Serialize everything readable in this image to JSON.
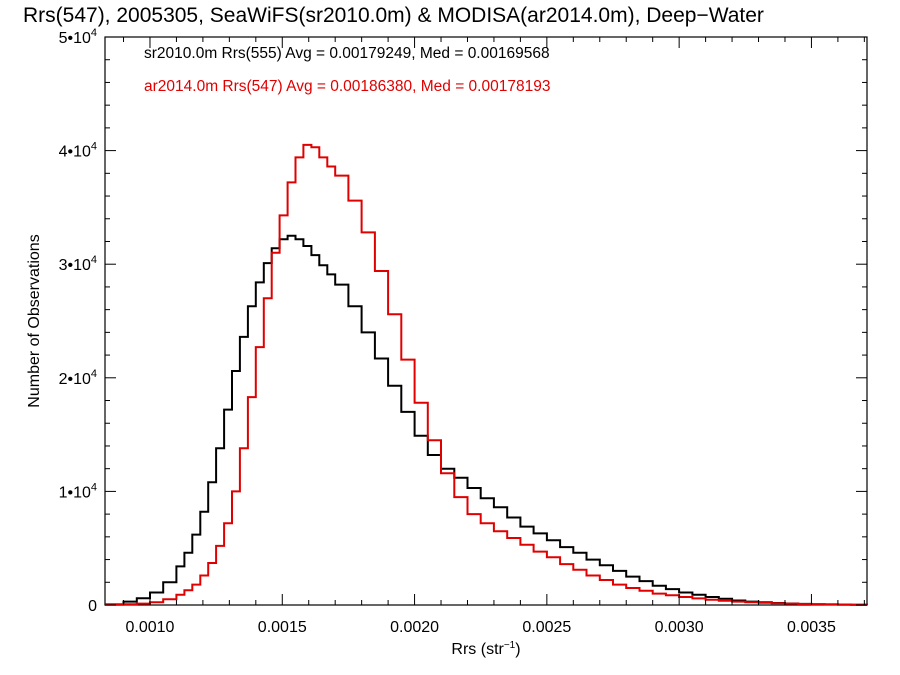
{
  "chart_data": {
    "type": "line",
    "title": "Rrs(547), 2005305, SeaWiFS(sr2010.0m) & MODISA(ar2014.0m), Deep−Water",
    "xlabel": "Rrs (str",
    "xlabel_sup": "−1",
    "xlabel_close": ")",
    "ylabel": "Number of Observations",
    "xlim": [
      0.00083,
      0.00371
    ],
    "ylim": [
      0,
      50000
    ],
    "x_ticks": [
      {
        "value": 0.001,
        "label": "0.0010"
      },
      {
        "value": 0.0015,
        "label": "0.0015"
      },
      {
        "value": 0.002,
        "label": "0.0020"
      },
      {
        "value": 0.0025,
        "label": "0.0025"
      },
      {
        "value": 0.003,
        "label": "0.0030"
      },
      {
        "value": 0.0035,
        "label": "0.0035"
      }
    ],
    "y_ticks": [
      {
        "value": 0,
        "label": "0",
        "sup": ""
      },
      {
        "value": 10000,
        "label": "1•10",
        "sup": "4"
      },
      {
        "value": 20000,
        "label": "2•10",
        "sup": "4"
      },
      {
        "value": 30000,
        "label": "3•10",
        "sup": "4"
      },
      {
        "value": 40000,
        "label": "4•10",
        "sup": "4"
      },
      {
        "value": 50000,
        "label": "5•10",
        "sup": "4"
      }
    ],
    "grid": false,
    "legend_placement": "top-left",
    "series": [
      {
        "legend": "sr2010.0m Rrs(555) Avg = 0.00179249, Med = 0.00169568",
        "color": "#000000",
        "style": "step",
        "x": [
          0.00083,
          0.0009,
          0.00095,
          0.001,
          0.00105,
          0.0011,
          0.00113,
          0.00116,
          0.00119,
          0.00122,
          0.00125,
          0.00128,
          0.00131,
          0.00134,
          0.00137,
          0.0014,
          0.00143,
          0.00146,
          0.00149,
          0.00152,
          0.00155,
          0.00158,
          0.00161,
          0.00164,
          0.00167,
          0.0017,
          0.00175,
          0.0018,
          0.00185,
          0.0019,
          0.00195,
          0.002,
          0.00205,
          0.0021,
          0.00215,
          0.0022,
          0.00225,
          0.0023,
          0.00235,
          0.0024,
          0.00245,
          0.0025,
          0.00255,
          0.0026,
          0.00265,
          0.0027,
          0.00275,
          0.0028,
          0.00285,
          0.0029,
          0.00295,
          0.003,
          0.00305,
          0.0031,
          0.00315,
          0.0032,
          0.00325,
          0.0033,
          0.00335,
          0.0034,
          0.00345,
          0.0035,
          0.00355,
          0.0036,
          0.00365,
          0.00371
        ],
        "y": [
          50,
          300,
          600,
          1100,
          2000,
          3400,
          4600,
          6200,
          8200,
          10800,
          13800,
          17200,
          20600,
          23600,
          26300,
          28400,
          30100,
          31400,
          32200,
          32500,
          32200,
          31600,
          30800,
          29900,
          29100,
          28200,
          26300,
          24000,
          21700,
          19300,
          17000,
          14900,
          13200,
          12000,
          11200,
          10300,
          9400,
          8600,
          7700,
          6900,
          6300,
          5700,
          5100,
          4600,
          4000,
          3500,
          3000,
          2500,
          2100,
          1700,
          1400,
          1100,
          900,
          700,
          550,
          400,
          300,
          250,
          180,
          130,
          100,
          70,
          50,
          35,
          25,
          15
        ]
      },
      {
        "legend": "ar2014.0m Rrs(547) Avg = 0.00186380, Med = 0.00178193",
        "color": "#e00000",
        "style": "step",
        "x": [
          0.00083,
          0.0009,
          0.00095,
          0.001,
          0.00105,
          0.0011,
          0.00113,
          0.00116,
          0.00119,
          0.00122,
          0.00125,
          0.00128,
          0.00131,
          0.00134,
          0.00137,
          0.0014,
          0.00143,
          0.00146,
          0.00149,
          0.00152,
          0.00155,
          0.00158,
          0.00161,
          0.00164,
          0.00167,
          0.0017,
          0.00175,
          0.0018,
          0.00185,
          0.0019,
          0.00195,
          0.002,
          0.00205,
          0.0021,
          0.00215,
          0.0022,
          0.00225,
          0.0023,
          0.00235,
          0.0024,
          0.00245,
          0.0025,
          0.00255,
          0.0026,
          0.00265,
          0.0027,
          0.00275,
          0.0028,
          0.00285,
          0.0029,
          0.00295,
          0.003,
          0.00305,
          0.0031,
          0.00315,
          0.0032,
          0.00325,
          0.0033,
          0.00335,
          0.0034,
          0.00345,
          0.0035,
          0.00355,
          0.0036,
          0.00365,
          0.00371
        ],
        "y": [
          20,
          60,
          120,
          250,
          500,
          900,
          1300,
          1800,
          2600,
          3700,
          5200,
          7200,
          10000,
          13800,
          18300,
          22700,
          27000,
          31000,
          34300,
          37200,
          39400,
          40500,
          40300,
          39400,
          38600,
          37800,
          35600,
          32800,
          29400,
          25600,
          21600,
          17800,
          14500,
          11600,
          9500,
          8000,
          7200,
          6500,
          5900,
          5300,
          4700,
          4200,
          3600,
          3100,
          2600,
          2200,
          1800,
          1500,
          1250,
          1000,
          850,
          700,
          580,
          470,
          380,
          300,
          240,
          190,
          150,
          120,
          90,
          70,
          50,
          35,
          25,
          15
        ]
      }
    ]
  }
}
